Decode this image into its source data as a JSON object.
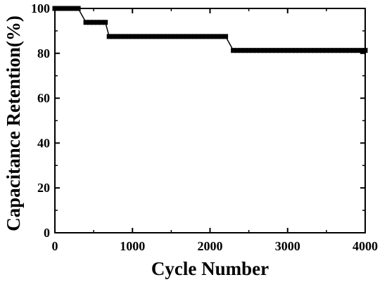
{
  "chart_data": {
    "type": "scatter",
    "xlabel": "Cycle Number",
    "ylabel": "Capacitance Retention(%)",
    "xlim": [
      0,
      4000
    ],
    "ylim": [
      0,
      100
    ],
    "xticks": [
      0,
      1000,
      2000,
      3000,
      4000
    ],
    "yticks": [
      0,
      20,
      40,
      60,
      80,
      100
    ],
    "grid": false,
    "legend": "none",
    "marker": "square",
    "line_color": "#000000",
    "series": [
      {
        "x": [
          0,
          50,
          100,
          150,
          200,
          250,
          300,
          400,
          450,
          500,
          550,
          600,
          650,
          700,
          750,
          800,
          850,
          900,
          950,
          1000,
          1050,
          1100,
          1150,
          1200,
          1250,
          1300,
          1350,
          1400,
          1450,
          1500,
          1550,
          1600,
          1650,
          1700,
          1750,
          1800,
          1850,
          1900,
          1950,
          2000,
          2050,
          2100,
          2150,
          2200,
          2300,
          2350,
          2400,
          2450,
          2500,
          2550,
          2600,
          2650,
          2700,
          2750,
          2800,
          2850,
          2900,
          2950,
          3000,
          3050,
          3100,
          3150,
          3200,
          3250,
          3300,
          3350,
          3400,
          3450,
          3500,
          3550,
          3600,
          3650,
          3700,
          3750,
          3800,
          3850,
          3900,
          3950,
          4000
        ],
        "y": [
          100,
          100,
          100,
          100,
          100,
          100,
          100,
          93.8,
          93.8,
          93.8,
          93.8,
          93.8,
          93.8,
          87.5,
          87.5,
          87.5,
          87.5,
          87.5,
          87.5,
          87.5,
          87.5,
          87.5,
          87.5,
          87.5,
          87.5,
          87.5,
          87.5,
          87.5,
          87.5,
          87.5,
          87.5,
          87.5,
          87.5,
          87.5,
          87.5,
          87.5,
          87.5,
          87.5,
          87.5,
          87.5,
          87.5,
          87.5,
          87.5,
          87.5,
          81.3,
          81.3,
          81.3,
          81.3,
          81.3,
          81.3,
          81.3,
          81.3,
          81.3,
          81.3,
          81.3,
          81.3,
          81.3,
          81.3,
          81.3,
          81.3,
          81.3,
          81.3,
          81.3,
          81.3,
          81.3,
          81.3,
          81.3,
          81.3,
          81.3,
          81.3,
          81.3,
          81.3,
          81.3,
          81.3,
          81.3,
          81.3,
          81.3,
          81.3,
          81.3
        ]
      }
    ]
  }
}
